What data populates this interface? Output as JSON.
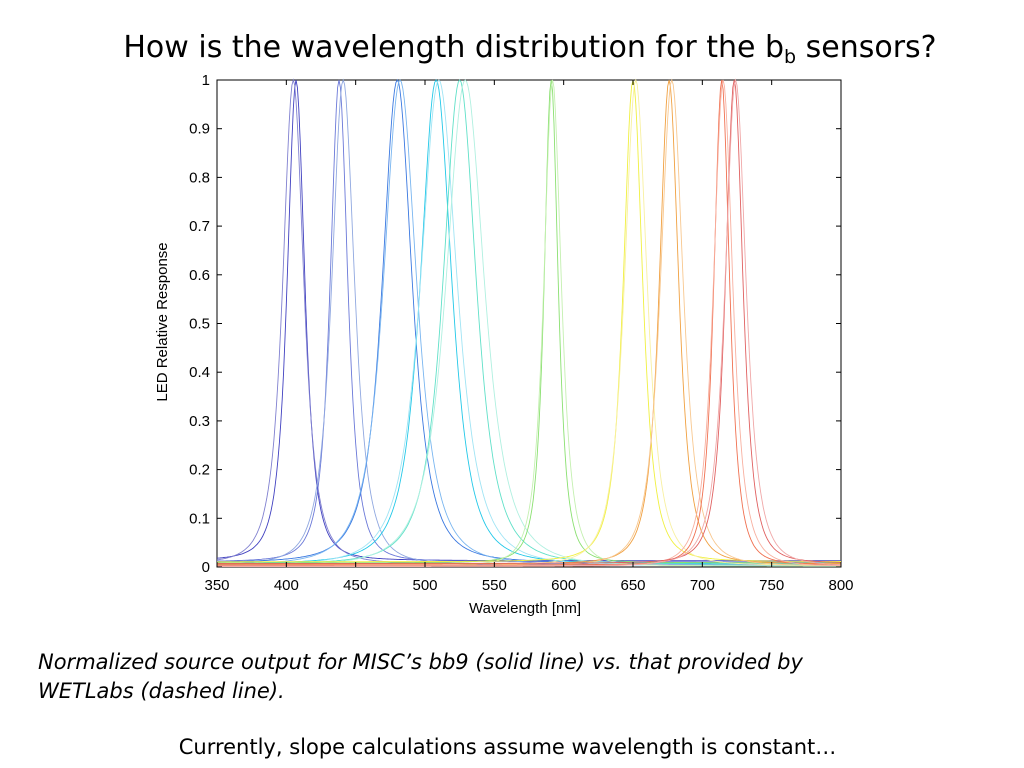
{
  "slide": {
    "title_main": "How is the wavelength distribution for the b",
    "title_sub": "b",
    "title_end": " sensors?",
    "caption_line1": "Normalized source output for MISC’s bb9 (solid line) vs. that provided by",
    "caption_line2": "WETLabs (dashed line).",
    "footnote": "Currently, slope calculations assume wavelength is constant…"
  },
  "chart_data": {
    "type": "line",
    "title": "",
    "xlabel": "Wavelength [nm]",
    "ylabel": "LED Relative Response",
    "xlim": [
      350,
      800
    ],
    "ylim": [
      0,
      1
    ],
    "xticks": [
      350,
      400,
      450,
      500,
      550,
      600,
      650,
      700,
      750,
      800
    ],
    "yticks": [
      0,
      0.1,
      0.2,
      0.3,
      0.4,
      0.5,
      0.6,
      0.7,
      0.8,
      0.9,
      1
    ],
    "ytick_labels": [
      "0",
      "0.1",
      "0.2",
      "0.3",
      "0.4",
      "0.5",
      "0.6",
      "0.7",
      "0.8",
      "0.9",
      "1"
    ],
    "grid": false,
    "legend": "none",
    "series": [
      {
        "color": "#4040c0",
        "peak": 407,
        "fwhm": 20,
        "baseline": 0.012
      },
      {
        "color": "#8080d0",
        "peak": 405,
        "fwhm": 24,
        "baseline": 0.006
      },
      {
        "color": "#6a78d8",
        "peak": 438,
        "fwhm": 20,
        "baseline": 0.01
      },
      {
        "color": "#90a8e0",
        "peak": 441,
        "fwhm": 26,
        "baseline": 0.004
      },
      {
        "color": "#3a78e0",
        "peak": 480,
        "fwhm": 34,
        "baseline": 0.008
      },
      {
        "color": "#7ab6f0",
        "peak": 482,
        "fwhm": 38,
        "baseline": 0.003
      },
      {
        "color": "#22c8e8",
        "peak": 508,
        "fwhm": 36,
        "baseline": 0.006
      },
      {
        "color": "#a0e4f4",
        "peak": 510,
        "fwhm": 42,
        "baseline": 0.002
      },
      {
        "color": "#60e0c8",
        "peak": 525,
        "fwhm": 38,
        "baseline": 0.005
      },
      {
        "color": "#b0f0e0",
        "peak": 529,
        "fwhm": 44,
        "baseline": 0.001
      },
      {
        "color": "#8ae070",
        "peak": 591,
        "fwhm": 16,
        "baseline": 0.008
      },
      {
        "color": "#c4f0b0",
        "peak": 592,
        "fwhm": 20,
        "baseline": 0.002
      },
      {
        "color": "#f0f040",
        "peak": 650,
        "fwhm": 22,
        "baseline": 0.01
      },
      {
        "color": "#f8f0a0",
        "peak": 652,
        "fwhm": 26,
        "baseline": 0.003
      },
      {
        "color": "#f0a040",
        "peak": 676,
        "fwhm": 22,
        "baseline": 0.006
      },
      {
        "color": "#f8c890",
        "peak": 678,
        "fwhm": 26,
        "baseline": 0.002
      },
      {
        "color": "#f07050",
        "peak": 714,
        "fwhm": 18,
        "baseline": 0.004
      },
      {
        "color": "#f8b0a0",
        "peak": 715,
        "fwhm": 22,
        "baseline": 0.001
      },
      {
        "color": "#e06060",
        "peak": 723,
        "fwhm": 20,
        "baseline": 0.007
      },
      {
        "color": "#f0a8a8",
        "peak": 724,
        "fwhm": 24,
        "baseline": 0.002
      }
    ]
  }
}
